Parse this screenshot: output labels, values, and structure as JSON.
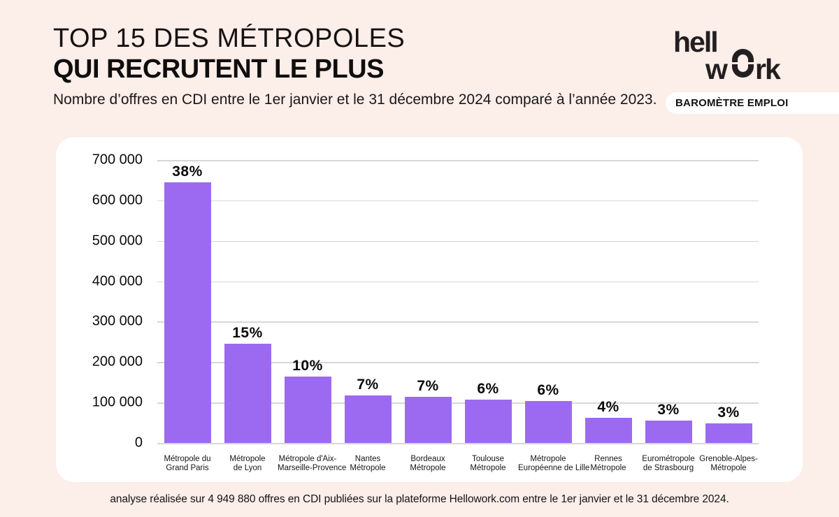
{
  "page": {
    "background": "#fceee9",
    "card_background": "#ffffff"
  },
  "header": {
    "title_line1": "TOP 15 DES MÉTROPOLES",
    "title_line2": "QUI RECRUTENT LE PLUS",
    "subtitle": "Nombre d’offres en CDI entre le 1er janvier et le 31 décembre 2024 comparé à l’année 2023."
  },
  "logo": {
    "part1": "hell",
    "part2": "w",
    "part3": "rk",
    "badge": "BAROMÈTRE EMPLOI"
  },
  "footer": {
    "note": "analyse réalisée sur 4 949 880 offres en CDI publiées sur la plateforme Hellowork.com entre le 1er janvier et le 31 décembre 2024."
  },
  "chart_data": {
    "type": "bar",
    "title": "TOP 15 DES MÉTROPOLES QUI RECRUTENT LE PLUS",
    "xlabel": "",
    "ylabel": "",
    "ylim": [
      0,
      700000
    ],
    "grid": true,
    "legend": "none",
    "bar_color": "#9c6af0",
    "categories": [
      "Métropole du Grand Paris",
      "Métropole de Lyon",
      "Métropole d'Aix-Marseille-Provence",
      "Nantes Métropole",
      "Bordeaux Métropole",
      "Toulouse Métropole",
      "Métropole Européenne de Lille",
      "Rennes Métropole",
      "Eurométropole de Strasbourg",
      "Grenoble-Alpes-Métropole"
    ],
    "category_lines": [
      [
        "Métropole du",
        "Grand Paris"
      ],
      [
        "Métropole",
        "de Lyon"
      ],
      [
        "Métropole d'Aix-",
        "Marseille-Provence"
      ],
      [
        "Nantes",
        "Métropole"
      ],
      [
        "Bordeaux",
        "Métropole"
      ],
      [
        "Toulouse",
        "Métropole"
      ],
      [
        "Métropole",
        "Européenne de Lille"
      ],
      [
        "Rennes",
        "Métropole"
      ],
      [
        "Eurométropole",
        "de Strasbourg"
      ],
      [
        "Grenoble-Alpes-",
        "Métropole"
      ]
    ],
    "values": [
      645000,
      246000,
      165000,
      118000,
      114000,
      108000,
      104000,
      62000,
      56000,
      49000
    ],
    "bar_labels": [
      "38%",
      "15%",
      "10%",
      "7%",
      "7%",
      "6%",
      "6%",
      "4%",
      "3%",
      "3%"
    ],
    "ytick_labels": [
      "700 000",
      "600 000",
      "500 000",
      "400 000",
      "300 000",
      "200 000",
      "100 000",
      "0"
    ],
    "ytick_values": [
      700000,
      600000,
      500000,
      400000,
      300000,
      200000,
      100000,
      0
    ]
  }
}
